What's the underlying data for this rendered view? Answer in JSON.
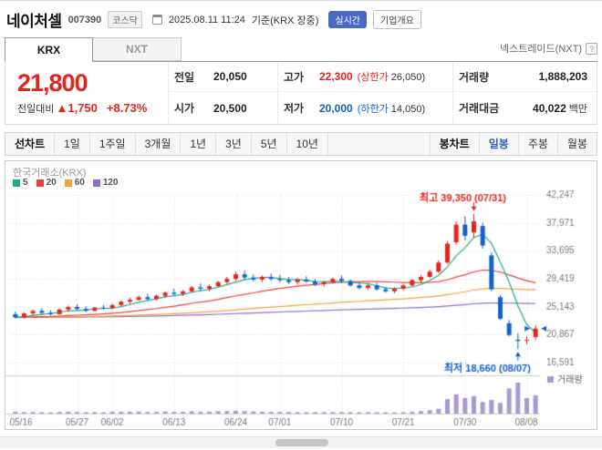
{
  "header": {
    "stock_name": "네이처셀",
    "stock_code": "007390",
    "market_badge": "코스닥",
    "datetime": "2025.08.11 11:24",
    "datetime_suffix": "기준(KRX 장중)",
    "realtime_badge": "실시간",
    "overview_badge": "기업개요"
  },
  "market_tabs": {
    "krx": "KRX",
    "nxt": "NXT",
    "nxt_info": "넥스트레이드(NXT)",
    "nxt_help": "?"
  },
  "quote": {
    "current_price": "21,800",
    "change_label": "전일대비",
    "change_value": "▲1,750",
    "change_percent": "+8.73%",
    "prev_label": "전일",
    "prev_value": "20,050",
    "open_label": "시가",
    "open_value": "20,500",
    "high_label": "고가",
    "high_value": "22,300",
    "upper_limit_label": "(상한가",
    "upper_limit_value": "26,050)",
    "low_label": "저가",
    "low_value": "20,000",
    "lower_limit_label": "(하한가",
    "lower_limit_value": "14,050)",
    "volume_label": "거래량",
    "volume_value": "1,888,203",
    "amount_label": "거래대금",
    "amount_value": "40,022",
    "amount_unit": "백만"
  },
  "toolbar": {
    "line_chart_label": "선차트",
    "periods": [
      "1일",
      "1주일",
      "3개월",
      "1년",
      "3년",
      "5년",
      "10년"
    ],
    "candle_chart_label": "봉차트",
    "candle_modes": [
      "일봉",
      "주봉",
      "월봉"
    ],
    "active_candle_mode": "일봉"
  },
  "chart_data": {
    "type": "candlestick",
    "title": "한국거래소(KRX)",
    "ma_legend": [
      {
        "label": "5",
        "color": "#1aab8f"
      },
      {
        "label": "20",
        "color": "#e8403f"
      },
      {
        "label": "60",
        "color": "#f0a23c"
      },
      {
        "label": "120",
        "color": "#8f6fc0"
      }
    ],
    "up_color": "#e5231d",
    "down_color": "#1460c8",
    "volume_color": "#a79ad1",
    "grid": true,
    "legend_position": "top-left",
    "y_ticks": [
      42247,
      37971,
      33695,
      29419,
      25143,
      20867,
      16591
    ],
    "x_labels": [
      {
        "index": 0,
        "label": "05/16"
      },
      {
        "index": 7,
        "label": "05/27"
      },
      {
        "index": 11,
        "label": "06/02"
      },
      {
        "index": 18,
        "label": "06/13"
      },
      {
        "index": 25,
        "label": "06/24"
      },
      {
        "index": 30,
        "label": "07/01"
      },
      {
        "index": 37,
        "label": "07/10"
      },
      {
        "index": 44,
        "label": "07/21"
      },
      {
        "index": 51,
        "label": "07/30"
      },
      {
        "index": 58,
        "label": "08/08"
      }
    ],
    "high_annotation": {
      "text": "최고 39,350 (07/31)",
      "index": 52,
      "price": 39350
    },
    "low_annotation": {
      "text": "최저 18,660 (08/07)",
      "index": 57,
      "price": 18660
    },
    "volume_legend": "거래량",
    "candle_fields": [
      "date",
      "open",
      "high",
      "low",
      "close",
      "volume"
    ],
    "candles": [
      [
        "05/16",
        24000,
        24400,
        23300,
        23500,
        180000
      ],
      [
        "05/19",
        23500,
        24300,
        23300,
        24100,
        150000
      ],
      [
        "05/20",
        24100,
        24700,
        23900,
        24500,
        160000
      ],
      [
        "05/21",
        24500,
        24900,
        24000,
        24200,
        140000
      ],
      [
        "05/22",
        24200,
        24600,
        23800,
        24000,
        130000
      ],
      [
        "05/23",
        24000,
        24900,
        23900,
        24700,
        170000
      ],
      [
        "05/26",
        24700,
        25300,
        24400,
        25100,
        190000
      ],
      [
        "05/27",
        25100,
        25500,
        24600,
        24800,
        160000
      ],
      [
        "05/28",
        24800,
        25200,
        24300,
        24500,
        140000
      ],
      [
        "05/29",
        24500,
        25100,
        24400,
        25000,
        150000
      ],
      [
        "05/30",
        25000,
        25400,
        24700,
        24900,
        130000
      ],
      [
        "06/02",
        24900,
        25600,
        24800,
        25400,
        180000
      ],
      [
        "06/04",
        25400,
        26100,
        25200,
        25900,
        200000
      ],
      [
        "06/05",
        25900,
        26500,
        25500,
        26200,
        190000
      ],
      [
        "06/09",
        26200,
        26900,
        26000,
        26600,
        210000
      ],
      [
        "06/10",
        26600,
        27100,
        26100,
        26300,
        170000
      ],
      [
        "06/11",
        26300,
        27000,
        26100,
        26800,
        180000
      ],
      [
        "06/12",
        26800,
        27500,
        26500,
        27300,
        220000
      ],
      [
        "06/13",
        27300,
        27900,
        26900,
        27100,
        190000
      ],
      [
        "06/16",
        27100,
        27700,
        26800,
        27500,
        180000
      ],
      [
        "06/17",
        27500,
        28300,
        27300,
        28100,
        230000
      ],
      [
        "06/18",
        28100,
        28700,
        27600,
        27900,
        200000
      ],
      [
        "06/19",
        27900,
        28500,
        27500,
        28300,
        190000
      ],
      [
        "06/20",
        28300,
        29100,
        28100,
        28900,
        240000
      ],
      [
        "06/23",
        28900,
        29700,
        28600,
        29400,
        260000
      ],
      [
        "06/24",
        29400,
        30500,
        29100,
        30100,
        300000
      ],
      [
        "06/25",
        30100,
        30700,
        29300,
        29600,
        250000
      ],
      [
        "06/26",
        29600,
        30100,
        29000,
        29300,
        210000
      ],
      [
        "06/27",
        29300,
        29900,
        28900,
        29700,
        190000
      ],
      [
        "06/30",
        29700,
        30200,
        29100,
        29400,
        180000
      ],
      [
        "07/01",
        29400,
        30000,
        28900,
        29200,
        170000
      ],
      [
        "07/02",
        29200,
        29700,
        28600,
        28900,
        160000
      ],
      [
        "07/03",
        28900,
        29500,
        28500,
        29300,
        150000
      ],
      [
        "07/04",
        29300,
        29800,
        28800,
        29000,
        140000
      ],
      [
        "07/07",
        29000,
        29400,
        28300,
        28600,
        150000
      ],
      [
        "07/08",
        28600,
        29100,
        28200,
        28900,
        140000
      ],
      [
        "07/09",
        28900,
        29600,
        28700,
        29400,
        160000
      ],
      [
        "07/10",
        29400,
        29900,
        28800,
        29100,
        150000
      ],
      [
        "07/11",
        29100,
        29300,
        28200,
        28400,
        140000
      ],
      [
        "07/14",
        28400,
        28800,
        27800,
        28000,
        130000
      ],
      [
        "07/15",
        28000,
        28600,
        27700,
        28400,
        150000
      ],
      [
        "07/16",
        28400,
        28800,
        27600,
        27800,
        140000
      ],
      [
        "07/17",
        27800,
        28200,
        27300,
        27500,
        130000
      ],
      [
        "07/18",
        27500,
        28100,
        27200,
        27900,
        120000
      ],
      [
        "07/21",
        27900,
        28600,
        27600,
        28400,
        140000
      ],
      [
        "07/22",
        28400,
        29400,
        28200,
        29200,
        200000
      ],
      [
        "07/23",
        29200,
        30000,
        28800,
        29700,
        250000
      ],
      [
        "07/24",
        29700,
        30800,
        29500,
        30500,
        350000
      ],
      [
        "07/25",
        30500,
        32200,
        30300,
        31900,
        500000
      ],
      [
        "07/28",
        31900,
        35200,
        31700,
        34800,
        1500000
      ],
      [
        "07/29",
        35000,
        38200,
        34600,
        37700,
        2000000
      ],
      [
        "07/30",
        37700,
        39000,
        35300,
        36000,
        1600000
      ],
      [
        "07/31",
        36500,
        39350,
        35700,
        38200,
        1800000
      ],
      [
        "08/01",
        37500,
        38000,
        34000,
        34500,
        1200000
      ],
      [
        "08/04",
        33000,
        33500,
        27500,
        27800,
        1400000
      ],
      [
        "08/05",
        26600,
        26900,
        23100,
        23300,
        1100000
      ],
      [
        "08/06",
        22600,
        23100,
        20600,
        20800,
        2600000
      ],
      [
        "08/07",
        20100,
        21100,
        18660,
        19900,
        3200000
      ],
      [
        "08/08",
        20000,
        20600,
        19400,
        20050,
        1600000
      ],
      [
        "08/11",
        20500,
        22300,
        20000,
        21800,
        1888203
      ]
    ]
  }
}
